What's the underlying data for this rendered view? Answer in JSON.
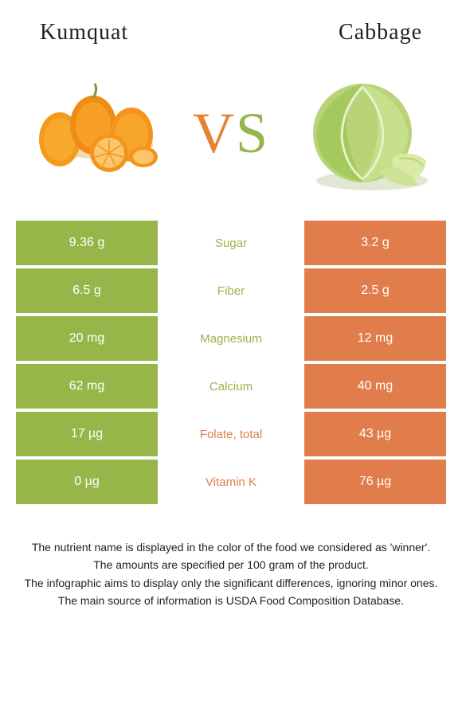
{
  "colors": {
    "left_food": "#97b64a",
    "right_food": "#e17d4b",
    "vs_v": "#e8822f",
    "vs_s": "#97b64a"
  },
  "header": {
    "left_title": "Kumquat",
    "right_title": "Cabbage"
  },
  "vs": {
    "v": "V",
    "s": "S"
  },
  "rows": [
    {
      "left": "9.36 g",
      "label": "Sugar",
      "right": "3.2 g",
      "winner": "left"
    },
    {
      "left": "6.5 g",
      "label": "Fiber",
      "right": "2.5 g",
      "winner": "left"
    },
    {
      "left": "20 mg",
      "label": "Magnesium",
      "right": "12 mg",
      "winner": "left"
    },
    {
      "left": "62 mg",
      "label": "Calcium",
      "right": "40 mg",
      "winner": "left"
    },
    {
      "left": "17 µg",
      "label": "Folate, total",
      "right": "43 µg",
      "winner": "right"
    },
    {
      "left": "0 µg",
      "label": "Vitamin K",
      "right": "76 µg",
      "winner": "right"
    }
  ],
  "footnotes": [
    "The nutrient name is displayed in the color of the food we considered as 'winner'.",
    "The amounts are specified per 100 gram of the product.",
    "The infographic aims to display only the significant differences, ignoring minor ones.",
    "The main source of information is USDA Food Composition Database."
  ]
}
